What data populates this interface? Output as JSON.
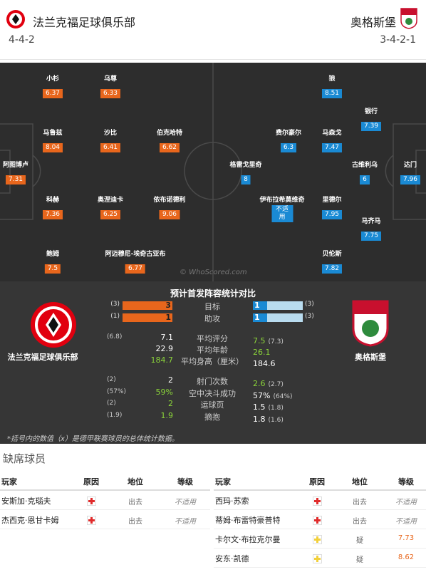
{
  "header": {
    "home": {
      "name": "法兰克福足球俱乐部",
      "formation": "4-4-2"
    },
    "away": {
      "name": "奥格斯堡",
      "formation": "3-4-2-1"
    }
  },
  "pitch": {
    "home_color": "#e8661c",
    "away_color": "#1a8ad4",
    "home_players": [
      {
        "name": "小杉",
        "rating": 6.37
      },
      {
        "name": "乌尊",
        "rating": 6.33
      },
      {
        "name": "马鲁兹",
        "rating": 8.04
      },
      {
        "name": "沙比",
        "rating": 6.41
      },
      {
        "name": "伯克哈特",
        "rating": 6.62
      },
      {
        "name": "阿图博卢",
        "rating": 7.31
      },
      {
        "name": "科赫",
        "rating": 7.36
      },
      {
        "name": "奥涅迪卡",
        "rating": 6.25
      },
      {
        "name": "依布诺德利",
        "rating": 9.06
      },
      {
        "name": "鲍姆",
        "rating": 7.5
      },
      {
        "name": "阿迈穆尼-埃奇古亚布",
        "rating": 6.77
      }
    ],
    "away_players": [
      {
        "name": "狼",
        "rating": 8.51
      },
      {
        "name": "银行",
        "rating": 7.39
      },
      {
        "name": "费尔豪尔",
        "rating": 6.3
      },
      {
        "name": "马森戈",
        "rating": 7.47
      },
      {
        "name": "格雷戈里奇",
        "rating": 8
      },
      {
        "name": "古维利乌",
        "rating": 6
      },
      {
        "name": "达门",
        "rating": 7.96
      },
      {
        "name": "伊布拉希莫维奇",
        "rating": "不适用"
      },
      {
        "name": "里德尔",
        "rating": 7.95
      },
      {
        "name": "马齐马",
        "rating": 7.75
      },
      {
        "name": "贝伦斯",
        "rating": 7.82
      }
    ],
    "watermark": "© WhoScored.com"
  },
  "comparison": {
    "title": "预计首发阵容统计对比",
    "home_name": "法兰克福足球俱乐部",
    "away_name": "奥格斯堡",
    "rows": [
      {
        "label": "目标",
        "home": 3,
        "home_bracket": "(3)",
        "away": 1,
        "away_bracket": "(3)",
        "bar": true
      },
      {
        "label": "助攻",
        "home": 1,
        "home_bracket": "(1)",
        "away": 1,
        "away_bracket": "(3)",
        "bar": true
      },
      {
        "label": "平均评分",
        "home": 7.1,
        "home_bracket": "(6.8)",
        "away": 7.5,
        "away_bracket": "(7.3)",
        "highlight": "away"
      },
      {
        "label": "平均年龄",
        "home": 22.9,
        "away": 26.1,
        "highlight": "away"
      },
      {
        "label": "平均身高（厘米）",
        "home": 184.7,
        "away": 184.6,
        "highlight": "home"
      },
      {
        "label": "射门次数",
        "home": 2,
        "home_bracket": "(2)",
        "away": 2.6,
        "away_bracket": "(2.7)",
        "highlight": "away"
      },
      {
        "label": "空中决斗成功",
        "home": "59%",
        "home_bracket": "(57%)",
        "away": "57%",
        "away_bracket": "(64%)",
        "highlight": "home"
      },
      {
        "label": "运球页",
        "home": 2,
        "home_bracket": "(2)",
        "away": 1.5,
        "away_bracket": "(1.8)",
        "highlight": "home"
      },
      {
        "label": "摘抱",
        "home": 1.9,
        "home_bracket": "(1.9)",
        "away": 1.8,
        "away_bracket": "(1.6)",
        "highlight": "home"
      }
    ],
    "footnote": "*括号内的数值（x）是德甲联赛球员的总体统计数据。"
  },
  "missing": {
    "title": "缺席球员",
    "headers": [
      "玩家",
      "原因",
      "地位",
      "等级"
    ],
    "left": [
      {
        "player": "安斯加·克瑙夫",
        "icon_color": "#e02b2b",
        "status": "出去",
        "rating": "不适用"
      },
      {
        "player": "杰西克·恩甘卡姆",
        "icon_color": "#e02b2b",
        "status": "出去",
        "rating": "不适用"
      }
    ],
    "right": [
      {
        "player": "西玛·苏索",
        "icon_color": "#e02b2b",
        "status": "出去",
        "rating": "不适用"
      },
      {
        "player": "蒂姆·布雷特豪普特",
        "icon_color": "#e02b2b",
        "status": "出去",
        "rating": "不适用"
      },
      {
        "player": "卡尔文·布拉克尔曼",
        "icon_color": "#f2d03b",
        "status": "疑",
        "rating": 7.73
      },
      {
        "player": "安东·凯德",
        "icon_color": "#f2d03b",
        "status": "疑",
        "rating": 8.62
      }
    ]
  }
}
